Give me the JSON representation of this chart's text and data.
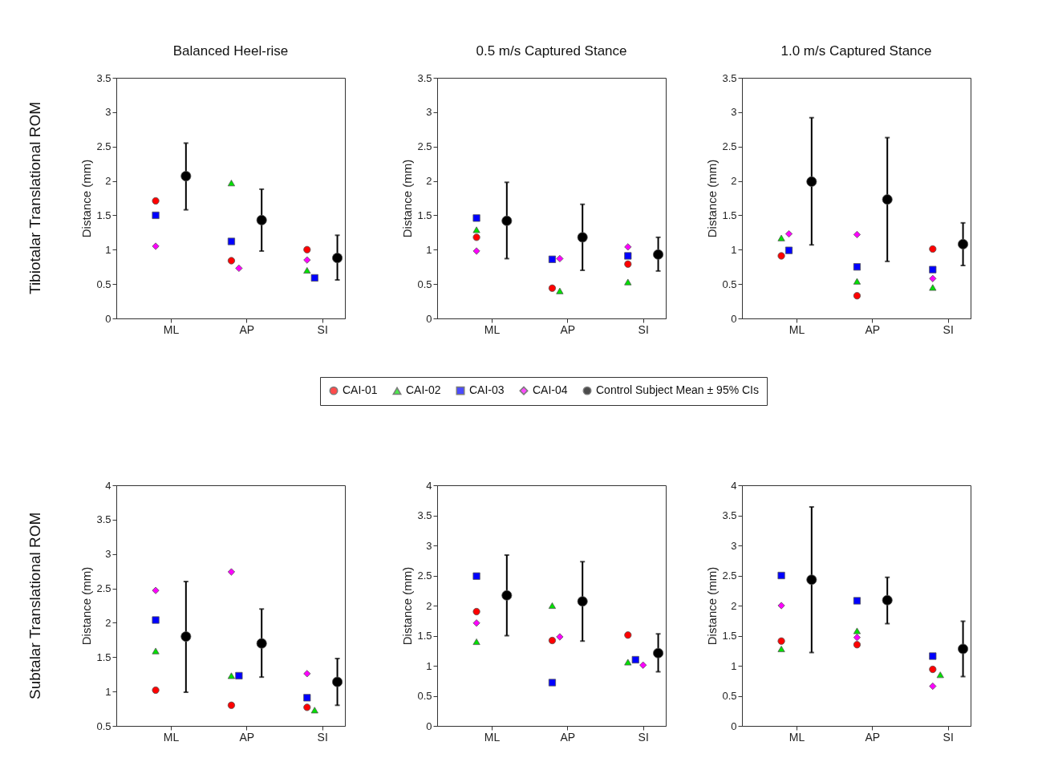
{
  "chart_data": [
    {
      "type": "scatter",
      "title": "Balanced Heel-rise",
      "ylabel": "Distance (mm)",
      "annotations": [
        "Tibiotalar Translational ROM"
      ],
      "categories": [
        "ML",
        "AP",
        "SI"
      ],
      "ylim": [
        0,
        3.5
      ],
      "yticks": [
        0,
        0.5,
        1,
        1.5,
        2,
        2.5,
        3,
        3.5
      ],
      "series": [
        {
          "color": "#ff0000",
          "marker": "circle",
          "values": [
            1.71,
            0.84,
            1.0
          ]
        },
        {
          "color": "#00e000",
          "marker": "triangle",
          "values": [
            null,
            1.97,
            0.7
          ]
        },
        {
          "color": "#0000ff",
          "marker": "square",
          "values": [
            1.5,
            1.12,
            0.59
          ]
        },
        {
          "color": "#ff00ff",
          "marker": "diamond",
          "values": [
            1.05,
            0.73,
            0.85
          ]
        },
        {
          "color": "#000000",
          "marker": "circle",
          "values": [
            2.07,
            1.43,
            0.88
          ],
          "errors": [
            [
              1.58,
              2.55
            ],
            [
              0.98,
              1.88
            ],
            [
              0.56,
              1.21
            ]
          ]
        }
      ]
    },
    {
      "type": "scatter",
      "title": "0.5 m/s Captured Stance",
      "ylabel": "Distance (mm)",
      "legend": "bottom",
      "categories": [
        "ML",
        "AP",
        "SI"
      ],
      "ylim": [
        0,
        3.5
      ],
      "yticks": [
        0,
        0.5,
        1,
        1.5,
        2,
        2.5,
        3,
        3.5
      ],
      "series": [
        {
          "name": "CAI-01",
          "color": "#ff0000",
          "marker": "circle",
          "values": [
            1.18,
            0.44,
            0.79
          ]
        },
        {
          "name": "CAI-02",
          "color": "#00e000",
          "marker": "triangle",
          "values": [
            1.29,
            0.4,
            0.53
          ]
        },
        {
          "name": "CAI-03",
          "color": "#0000ff",
          "marker": "square",
          "values": [
            1.46,
            0.86,
            0.91
          ]
        },
        {
          "name": "CAI-04",
          "color": "#ff00ff",
          "marker": "diamond",
          "values": [
            0.98,
            0.87,
            1.04
          ]
        },
        {
          "name": "Control Subject Mean ± 95% CIs",
          "color": "#000000",
          "marker": "circle",
          "values": [
            1.42,
            1.18,
            0.93
          ],
          "errors": [
            [
              0.87,
              1.98
            ],
            [
              0.7,
              1.66
            ],
            [
              0.69,
              1.18
            ]
          ]
        }
      ]
    },
    {
      "type": "scatter",
      "title": "1.0 m/s Captured Stance",
      "ylabel": "Distance (mm)",
      "categories": [
        "ML",
        "AP",
        "SI"
      ],
      "ylim": [
        0,
        3.5
      ],
      "yticks": [
        0,
        0.5,
        1,
        1.5,
        2,
        2.5,
        3,
        3.5
      ],
      "series": [
        {
          "color": "#ff0000",
          "marker": "circle",
          "values": [
            0.91,
            0.33,
            1.01
          ]
        },
        {
          "color": "#00e000",
          "marker": "triangle",
          "values": [
            1.17,
            0.54,
            0.45
          ]
        },
        {
          "color": "#0000ff",
          "marker": "square",
          "values": [
            0.99,
            0.75,
            0.71
          ]
        },
        {
          "color": "#ff00ff",
          "marker": "diamond",
          "values": [
            1.23,
            1.22,
            0.58
          ]
        },
        {
          "color": "#000000",
          "marker": "circle",
          "values": [
            1.99,
            1.73,
            1.08
          ],
          "errors": [
            [
              1.07,
              2.92
            ],
            [
              0.83,
              2.63
            ],
            [
              0.77,
              1.39
            ]
          ]
        }
      ]
    },
    {
      "type": "scatter",
      "ylabel": "Distance (mm)",
      "annotations": [
        "Subtalar Translational ROM"
      ],
      "categories": [
        "ML",
        "AP",
        "SI"
      ],
      "ylim": [
        0.5,
        4
      ],
      "yticks": [
        0.5,
        1,
        1.5,
        2,
        2.5,
        3,
        3.5,
        4
      ],
      "series": [
        {
          "color": "#ff0000",
          "marker": "circle",
          "values": [
            1.02,
            0.8,
            0.77
          ]
        },
        {
          "color": "#00e000",
          "marker": "triangle",
          "values": [
            1.59,
            1.23,
            0.73
          ]
        },
        {
          "color": "#0000ff",
          "marker": "square",
          "values": [
            2.04,
            1.23,
            0.91
          ]
        },
        {
          "color": "#ff00ff",
          "marker": "diamond",
          "values": [
            2.47,
            2.74,
            1.26
          ]
        },
        {
          "color": "#000000",
          "marker": "circle",
          "values": [
            1.8,
            1.7,
            1.14
          ],
          "errors": [
            [
              0.99,
              2.6
            ],
            [
              1.21,
              2.2
            ],
            [
              0.8,
              1.48
            ]
          ]
        }
      ]
    },
    {
      "type": "scatter",
      "ylabel": "Distance (mm)",
      "categories": [
        "ML",
        "AP",
        "SI"
      ],
      "ylim": [
        0,
        4
      ],
      "yticks": [
        0,
        0.5,
        1,
        1.5,
        2,
        2.5,
        3,
        3.5,
        4
      ],
      "series": [
        {
          "color": "#ff0000",
          "marker": "circle",
          "values": [
            1.9,
            1.42,
            1.51
          ]
        },
        {
          "color": "#00e000",
          "marker": "triangle",
          "values": [
            1.4,
            2.0,
            1.06
          ]
        },
        {
          "color": "#0000ff",
          "marker": "square",
          "values": [
            2.49,
            0.72,
            1.1
          ]
        },
        {
          "color": "#ff00ff",
          "marker": "diamond",
          "values": [
            1.71,
            1.48,
            1.01
          ]
        },
        {
          "color": "#000000",
          "marker": "circle",
          "values": [
            2.17,
            2.07,
            1.21
          ],
          "errors": [
            [
              1.5,
              2.84
            ],
            [
              1.41,
              2.73
            ],
            [
              0.9,
              1.53
            ]
          ]
        }
      ]
    },
    {
      "type": "scatter",
      "ylabel": "Distance (mm)",
      "categories": [
        "ML",
        "AP",
        "SI"
      ],
      "ylim": [
        0,
        4
      ],
      "yticks": [
        0,
        0.5,
        1,
        1.5,
        2,
        2.5,
        3,
        3.5,
        4
      ],
      "series": [
        {
          "color": "#ff0000",
          "marker": "circle",
          "values": [
            1.41,
            1.35,
            0.94
          ]
        },
        {
          "color": "#00e000",
          "marker": "triangle",
          "values": [
            1.28,
            1.58,
            0.85
          ]
        },
        {
          "color": "#0000ff",
          "marker": "square",
          "values": [
            2.5,
            2.08,
            1.16
          ]
        },
        {
          "color": "#ff00ff",
          "marker": "diamond",
          "values": [
            2.0,
            1.47,
            0.66
          ]
        },
        {
          "color": "#000000",
          "marker": "circle",
          "values": [
            2.43,
            2.09,
            1.28
          ],
          "errors": [
            [
              1.22,
              3.64
            ],
            [
              1.7,
              2.47
            ],
            [
              0.82,
              1.74
            ]
          ]
        }
      ]
    }
  ]
}
